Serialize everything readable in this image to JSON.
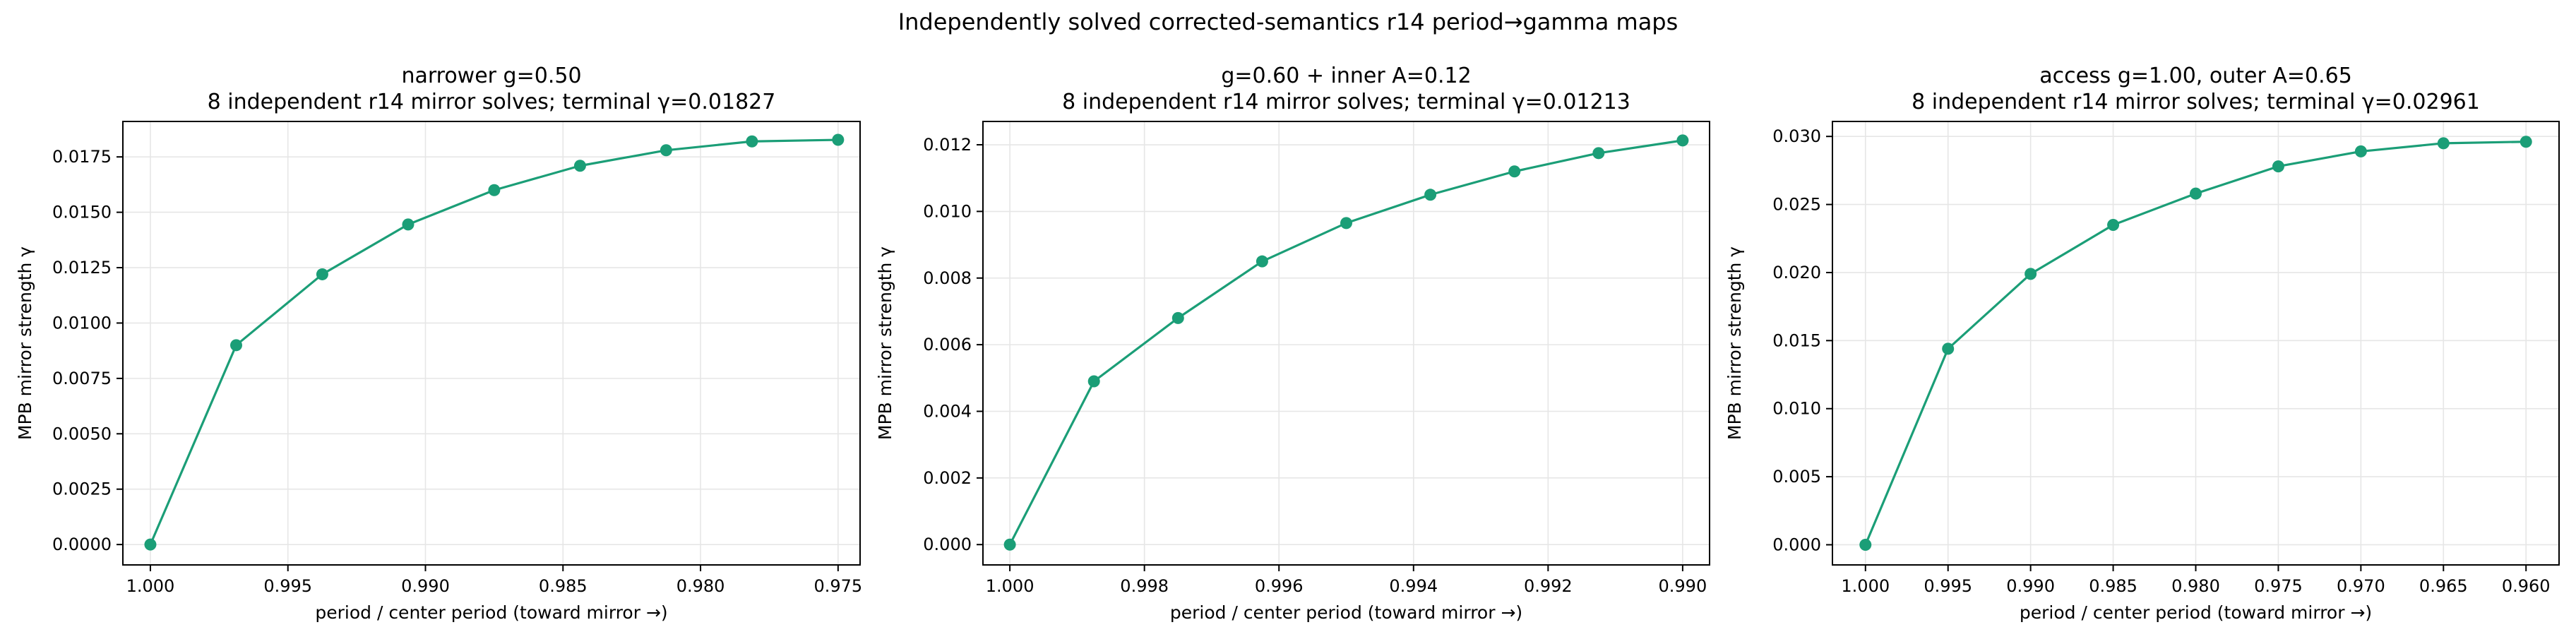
{
  "figure": {
    "suptitle": "Independently solved corrected-semantics r14 period→gamma maps"
  },
  "chart_data": [
    {
      "type": "line",
      "title_line1": "narrower g=0.50",
      "title_line2": "8 independent r14 mirror solves; terminal γ=0.01827",
      "xlabel": "period / center period (toward mirror →)",
      "ylabel": "MPB mirror strength γ",
      "x_inverted": true,
      "xlim": [
        1.001,
        0.9742
      ],
      "ylim": [
        -0.00092,
        0.0191
      ],
      "xticks": [
        1.0,
        0.995,
        0.99,
        0.985,
        0.98,
        0.975
      ],
      "xtick_labels": [
        "1.000",
        "0.995",
        "0.990",
        "0.985",
        "0.980",
        "0.975"
      ],
      "yticks": [
        0,
        0.0025,
        0.005,
        0.0075,
        0.01,
        0.0125,
        0.015,
        0.0175
      ],
      "ytick_labels": [
        "0.0000",
        "0.0025",
        "0.0050",
        "0.0075",
        "0.0100",
        "0.0125",
        "0.0150",
        "0.0175"
      ],
      "grid": true,
      "color": "#1b9e77",
      "x": [
        1.0,
        0.99688,
        0.99375,
        0.99063,
        0.9875,
        0.98438,
        0.98125,
        0.97813,
        0.975
      ],
      "y": [
        0.0,
        0.009,
        0.0122,
        0.01445,
        0.016,
        0.0171,
        0.0178,
        0.0182,
        0.01827
      ]
    },
    {
      "type": "line",
      "title_line1": "g=0.60 + inner A=0.12",
      "title_line2": "8 independent r14 mirror solves; terminal γ=0.01213",
      "xlabel": "period / center period (toward mirror →)",
      "ylabel": "MPB mirror strength γ",
      "x_inverted": true,
      "xlim": [
        1.0004,
        0.9896
      ],
      "ylim": [
        -0.00061,
        0.0127
      ],
      "xticks": [
        1.0,
        0.998,
        0.996,
        0.994,
        0.992,
        0.99
      ],
      "xtick_labels": [
        "1.000",
        "0.998",
        "0.996",
        "0.994",
        "0.992",
        "0.990"
      ],
      "yticks": [
        0,
        0.002,
        0.004,
        0.006,
        0.008,
        0.01,
        0.012
      ],
      "ytick_labels": [
        "0.000",
        "0.002",
        "0.004",
        "0.006",
        "0.008",
        "0.010",
        "0.012"
      ],
      "grid": true,
      "color": "#1b9e77",
      "x": [
        1.0,
        0.99875,
        0.9975,
        0.99625,
        0.995,
        0.99375,
        0.9925,
        0.99125,
        0.99
      ],
      "y": [
        0.0,
        0.0049,
        0.0068,
        0.0085,
        0.00965,
        0.0105,
        0.0112,
        0.01175,
        0.01213
      ]
    },
    {
      "type": "line",
      "title_line1": "access g=1.00, outer A=0.65",
      "title_line2": "8 independent r14 mirror solves; terminal γ=0.02961",
      "xlabel": "period / center period (toward mirror →)",
      "ylabel": "MPB mirror strength γ",
      "x_inverted": true,
      "xlim": [
        1.002,
        0.958
      ],
      "ylim": [
        -0.00148,
        0.0311
      ],
      "xticks": [
        1.0,
        0.995,
        0.99,
        0.985,
        0.98,
        0.975,
        0.97,
        0.965,
        0.96
      ],
      "xtick_labels": [
        "1.000",
        "0.995",
        "0.990",
        "0.985",
        "0.980",
        "0.975",
        "0.970",
        "0.965",
        "0.960"
      ],
      "yticks": [
        0,
        0.005,
        0.01,
        0.015,
        0.02,
        0.025,
        0.03
      ],
      "ytick_labels": [
        "0.000",
        "0.005",
        "0.010",
        "0.015",
        "0.020",
        "0.025",
        "0.030"
      ],
      "grid": true,
      "color": "#1b9e77",
      "x": [
        1.0,
        0.995,
        0.99,
        0.985,
        0.98,
        0.975,
        0.97,
        0.965,
        0.96
      ],
      "y": [
        0.0,
        0.0144,
        0.0199,
        0.0235,
        0.0258,
        0.0278,
        0.0289,
        0.0295,
        0.02961
      ]
    }
  ]
}
